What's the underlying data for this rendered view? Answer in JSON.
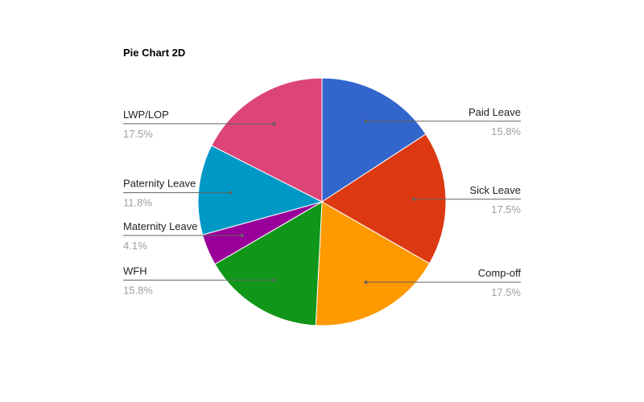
{
  "chart_data": {
    "type": "pie",
    "title": "Pie Chart 2D",
    "slices": [
      {
        "label": "Paid Leave",
        "value": 15.8,
        "percent_label": "15.8%",
        "color": "#3366cc"
      },
      {
        "label": "Sick Leave",
        "value": 17.5,
        "percent_label": "17.5%",
        "color": "#dc3912"
      },
      {
        "label": "Comp-off",
        "value": 17.5,
        "percent_label": "17.5%",
        "color": "#ff9900"
      },
      {
        "label": "WFH",
        "value": 15.8,
        "percent_label": "15.8%",
        "color": "#109618"
      },
      {
        "label": "Maternity Leave",
        "value": 4.1,
        "percent_label": "4.1%",
        "color": "#990099"
      },
      {
        "label": "Paternity Leave",
        "value": 11.8,
        "percent_label": "11.8%",
        "color": "#0099c6"
      },
      {
        "label": "LWP/LOP",
        "value": 17.5,
        "percent_label": "17.5%",
        "color": "#dd4477"
      }
    ],
    "legend": "labeled"
  }
}
